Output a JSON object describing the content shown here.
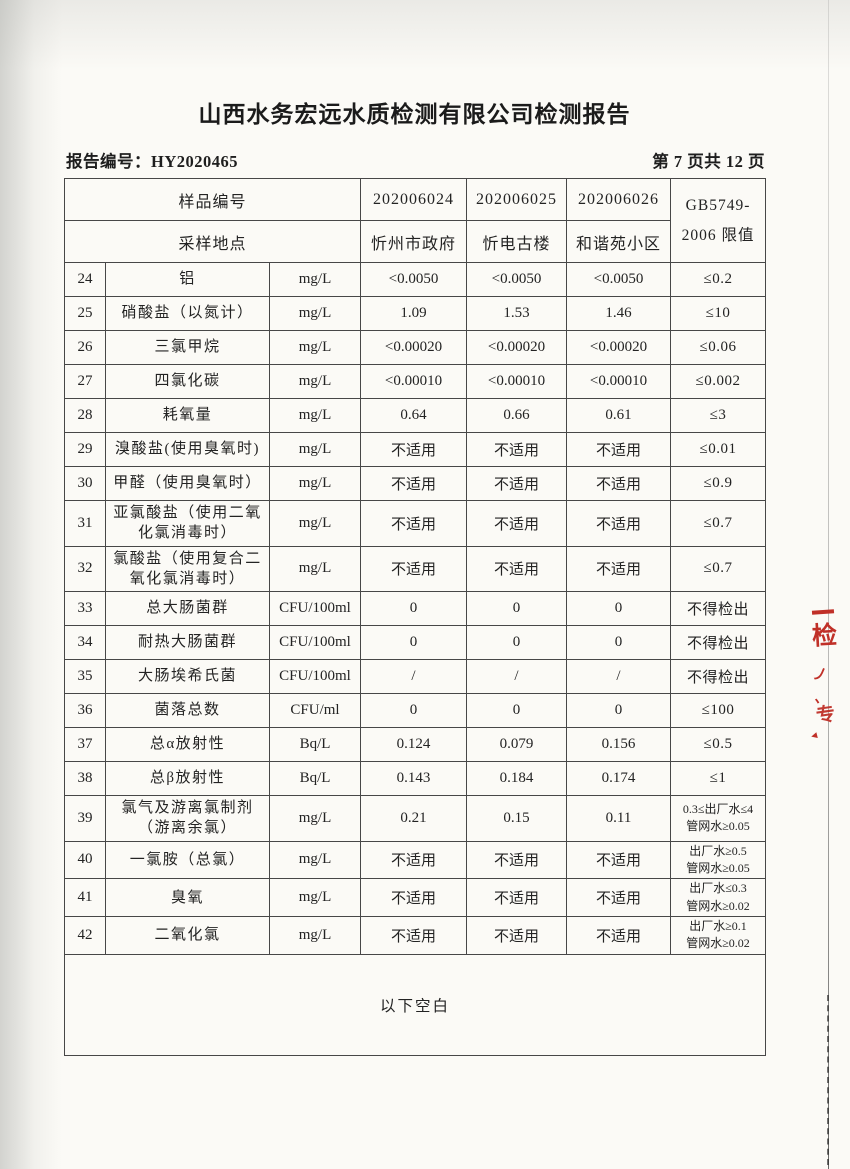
{
  "header": {
    "title": "山西水务宏远水质检测有限公司检测报告",
    "report_no": "报告编号：HY2020465",
    "page_indicator": "第 7 页共 12 页"
  },
  "table": {
    "head": {
      "sample_id_label": "样品编号",
      "sample_ids": [
        "202006024",
        "202006025",
        "202006026"
      ],
      "location_label": "采样地点",
      "locations": [
        "忻州市政府",
        "忻电古楼",
        "和谐苑小区"
      ],
      "limit_label": "GB5749-\n2006 限值"
    },
    "rows": [
      {
        "no": "24",
        "name": "铝",
        "unit": "mg/L",
        "values": [
          "<0.0050",
          "<0.0050",
          "<0.0050"
        ],
        "limit": "≤0.2"
      },
      {
        "no": "25",
        "name": "硝酸盐（以氮计）",
        "unit": "mg/L",
        "values": [
          "1.09",
          "1.53",
          "1.46"
        ],
        "limit": "≤10"
      },
      {
        "no": "26",
        "name": "三氯甲烷",
        "unit": "mg/L",
        "values": [
          "<0.00020",
          "<0.00020",
          "<0.00020"
        ],
        "limit": "≤0.06"
      },
      {
        "no": "27",
        "name": "四氯化碳",
        "unit": "mg/L",
        "values": [
          "<0.00010",
          "<0.00010",
          "<0.00010"
        ],
        "limit": "≤0.002"
      },
      {
        "no": "28",
        "name": "耗氧量",
        "unit": "mg/L",
        "values": [
          "0.64",
          "0.66",
          "0.61"
        ],
        "limit": "≤3"
      },
      {
        "no": "29",
        "name": "溴酸盐(使用臭氧时)",
        "unit": "mg/L",
        "values": [
          "不适用",
          "不适用",
          "不适用"
        ],
        "limit": "≤0.01"
      },
      {
        "no": "30",
        "name": "甲醛（使用臭氧时）",
        "unit": "mg/L",
        "values": [
          "不适用",
          "不适用",
          "不适用"
        ],
        "limit": "≤0.9"
      },
      {
        "no": "31",
        "name": "亚氯酸盐（使用二氧化氯消毒时）",
        "unit": "mg/L",
        "values": [
          "不适用",
          "不适用",
          "不适用"
        ],
        "limit": "≤0.7"
      },
      {
        "no": "32",
        "name": "氯酸盐（使用复合二氧化氯消毒时）",
        "unit": "mg/L",
        "values": [
          "不适用",
          "不适用",
          "不适用"
        ],
        "limit": "≤0.7"
      },
      {
        "no": "33",
        "name": "总大肠菌群",
        "unit": "CFU/100ml",
        "values": [
          "0",
          "0",
          "0"
        ],
        "limit": "不得检出"
      },
      {
        "no": "34",
        "name": "耐热大肠菌群",
        "unit": "CFU/100ml",
        "values": [
          "0",
          "0",
          "0"
        ],
        "limit": "不得检出"
      },
      {
        "no": "35",
        "name": "大肠埃希氏菌",
        "unit": "CFU/100ml",
        "values": [
          "/",
          "/",
          "/"
        ],
        "limit": "不得检出"
      },
      {
        "no": "36",
        "name": "菌落总数",
        "unit": "CFU/ml",
        "values": [
          "0",
          "0",
          "0"
        ],
        "limit": "≤100"
      },
      {
        "no": "37",
        "name": "总α放射性",
        "unit": "Bq/L",
        "values": [
          "0.124",
          "0.079",
          "0.156"
        ],
        "limit": "≤0.5"
      },
      {
        "no": "38",
        "name": "总β放射性",
        "unit": "Bq/L",
        "values": [
          "0.143",
          "0.184",
          "0.174"
        ],
        "limit": "≤1"
      },
      {
        "no": "39",
        "name": "氯气及游离氯制剂（游离余氯）",
        "unit": "mg/L",
        "values": [
          "0.21",
          "0.15",
          "0.11"
        ],
        "limit": "0.3≤出厂水≤4\n管网水≥0.05"
      },
      {
        "no": "40",
        "name": "一氯胺（总氯）",
        "unit": "mg/L",
        "values": [
          "不适用",
          "不适用",
          "不适用"
        ],
        "limit": "出厂水≥0.5\n管网水≥0.05"
      },
      {
        "no": "41",
        "name": "臭氧",
        "unit": "mg/L",
        "values": [
          "不适用",
          "不适用",
          "不适用"
        ],
        "limit": "出厂水≤0.3\n管网水≥0.02"
      },
      {
        "no": "42",
        "name": "二氧化氯",
        "unit": "mg/L",
        "values": [
          "不适用",
          "不适用",
          "不适用"
        ],
        "limit": "出厂水≥0.1\n管网水≥0.02"
      }
    ],
    "footer_note": "以下空白"
  },
  "stamp": {
    "color": "#c03028",
    "fragments": [
      "检",
      "丿",
      "、",
      "专",
      "◂"
    ]
  }
}
